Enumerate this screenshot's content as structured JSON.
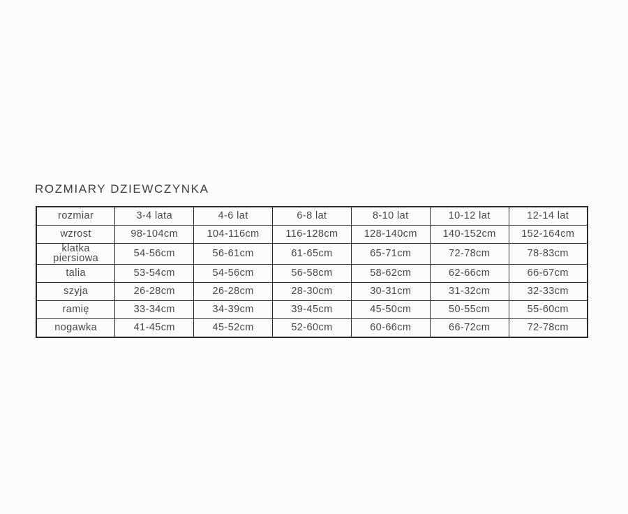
{
  "page": {
    "title": "ROZMIARY DZIEWCZYNKA"
  },
  "colors": {
    "background": "#fcfcfc",
    "text": "#474747",
    "border": "#2b2b2b"
  },
  "table": {
    "rows": [
      {
        "label": "rozmiar",
        "values": [
          "3-4 lata",
          "4-6 lat",
          "6-8 lat",
          "8-10 lat",
          "10-12 lat",
          "12-14 lat"
        ]
      },
      {
        "label": "wzrost",
        "values": [
          "98-104cm",
          "104-116cm",
          "116-128cm",
          "128-140cm",
          "140-152cm",
          "152-164cm"
        ]
      },
      {
        "label": "klatka piersiowa",
        "values": [
          "54-56cm",
          "56-61cm",
          "61-65cm",
          "65-71cm",
          "72-78cm",
          "78-83cm"
        ]
      },
      {
        "label": "talia",
        "values": [
          "53-54cm",
          "54-56cm",
          "56-58cm",
          "58-62cm",
          "62-66cm",
          "66-67cm"
        ]
      },
      {
        "label": "szyja",
        "values": [
          "26-28cm",
          "26-28cm",
          "28-30cm",
          "30-31cm",
          "31-32cm",
          "32-33cm"
        ]
      },
      {
        "label": "ramię",
        "values": [
          "33-34cm",
          "34-39cm",
          "39-45cm",
          "45-50cm",
          "50-55cm",
          "55-60cm"
        ]
      },
      {
        "label": "nogawka",
        "values": [
          "41-45cm",
          "45-52cm",
          "52-60cm",
          "60-66cm",
          "66-72cm",
          "72-78cm"
        ]
      }
    ]
  }
}
